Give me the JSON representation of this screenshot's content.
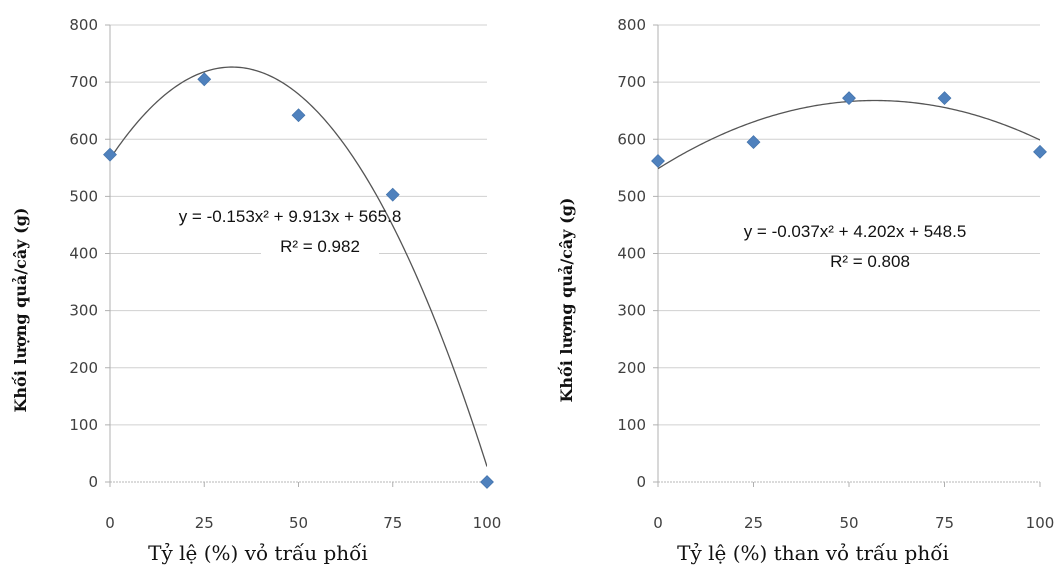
{
  "chart_data": [
    {
      "type": "scatter",
      "title": "",
      "xlabel": "Tỷ lệ (%) vỏ trấu phối",
      "ylabel": "Khối lượng quả/cây (g)",
      "x_ticks": [
        "0",
        "25",
        "50",
        "75",
        "100"
      ],
      "y_ticks": [
        "0",
        "100",
        "200",
        "300",
        "400",
        "500",
        "600",
        "700",
        "800"
      ],
      "xlim": [
        0,
        100
      ],
      "ylim": [
        0,
        800
      ],
      "grid": "horizontal",
      "points": {
        "x": [
          0,
          25,
          50,
          75,
          100
        ],
        "y": [
          573,
          705,
          642,
          503,
          0
        ]
      },
      "marker_color": "#4f81bd",
      "trendline": {
        "kind": "polynomial-2",
        "coefficients": {
          "a": -0.153,
          "b": 9.913,
          "c": 565.8
        },
        "equation": "y = -0.153x² + 9.913x + 565.8",
        "r2": "R² = 0.982"
      }
    },
    {
      "type": "scatter",
      "title": "",
      "xlabel": "Tỷ lệ (%) than vỏ trấu phối",
      "ylabel": "Khối lượng quả/cây (g)",
      "x_ticks": [
        "0",
        "25",
        "50",
        "75",
        "100"
      ],
      "y_ticks": [
        "0",
        "100",
        "200",
        "300",
        "400",
        "500",
        "600",
        "700",
        "800"
      ],
      "xlim": [
        0,
        100
      ],
      "ylim": [
        0,
        800
      ],
      "grid": "horizontal",
      "points": {
        "x": [
          0,
          25,
          50,
          75,
          100
        ],
        "y": [
          562,
          595,
          672,
          672,
          578
        ]
      },
      "marker_color": "#4f81bd",
      "trendline": {
        "kind": "polynomial-2",
        "coefficients": {
          "a": -0.037,
          "b": 4.202,
          "c": 548.5
        },
        "equation": "y = -0.037x² + 4.202x + 548.5",
        "r2": "R² = 0.808"
      }
    }
  ]
}
